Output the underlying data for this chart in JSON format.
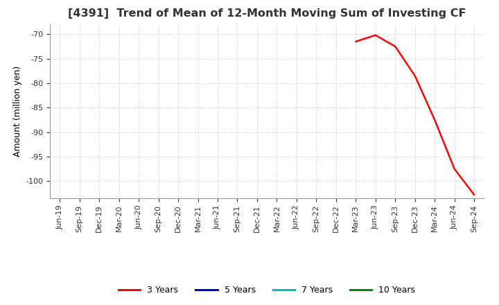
{
  "title": "[4391]  Trend of Mean of 12-Month Moving Sum of Investing CF",
  "ylabel": "Amount (million yen)",
  "ylim": [
    -103.5,
    -68
  ],
  "yticks": [
    -70,
    -75,
    -80,
    -85,
    -90,
    -95,
    -100
  ],
  "background_color": "#ffffff",
  "grid_color": "#bbbbbb",
  "x_labels": [
    "Jun-19",
    "Sep-19",
    "Dec-19",
    "Mar-20",
    "Jun-20",
    "Sep-20",
    "Dec-20",
    "Mar-21",
    "Jun-21",
    "Sep-21",
    "Dec-21",
    "Mar-22",
    "Jun-22",
    "Sep-22",
    "Dec-22",
    "Mar-23",
    "Jun-23",
    "Sep-23",
    "Dec-23",
    "Mar-24",
    "Jun-24",
    "Sep-24"
  ],
  "line_3y_x": [
    15,
    16,
    17,
    18,
    19,
    20,
    21
  ],
  "line_3y_y": [
    -71.5,
    -70.2,
    -72.5,
    -78.5,
    -87.5,
    -97.5,
    -102.8
  ],
  "line_color_3y": "#ff0000",
  "line_color_5y": "#0000cc",
  "line_color_7y": "#00bbbb",
  "line_color_10y": "#008800",
  "legend_labels": [
    "3 Years",
    "5 Years",
    "7 Years",
    "10 Years"
  ],
  "title_fontsize": 11.5,
  "axis_fontsize": 9,
  "tick_fontsize": 8
}
